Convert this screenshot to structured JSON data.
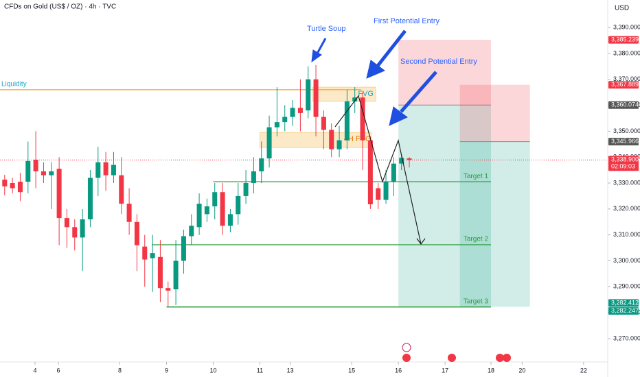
{
  "header": {
    "symbol": "CFDs on Gold (US$ / OZ) · 4h · TVC",
    "currency": "USD"
  },
  "chart_data": {
    "type": "candlestick",
    "x": [
      0,
      1,
      2,
      3,
      4,
      5,
      6,
      7,
      8,
      9,
      10,
      11,
      12,
      13,
      14,
      15,
      16,
      17,
      18,
      19,
      20,
      21,
      22,
      23,
      24,
      25,
      26,
      27,
      28,
      29,
      30,
      31,
      32,
      33,
      34,
      35,
      36,
      37,
      38,
      39,
      40,
      41,
      42,
      43,
      44,
      45,
      46,
      47,
      48,
      49,
      50,
      51,
      52
    ],
    "open": [
      3331.3,
      3330,
      3330.5,
      3330.5,
      3339,
      3334.5,
      3333,
      3335.5,
      3316.5,
      3313,
      3309,
      3316,
      3332,
      3338,
      3333,
      3333,
      3322,
      3315,
      3305.5,
      3301,
      3301.5,
      3289.5,
      3289,
      3300,
      3309.5,
      3313,
      3318,
      3321,
      3326.5,
      3313.5,
      3318,
      3325,
      3330,
      3334.5,
      3339.5,
      3351.5,
      3353.5,
      3355.5,
      3359,
      3358,
      3370,
      3355.5,
      3350.5,
      3343,
      3346.5,
      3361.5,
      3363,
      3346.5,
      3328,
      3323.5,
      3330.5,
      3337.5,
      3339.5
    ],
    "high": [
      3333.2,
      3332,
      3334,
      3346,
      3350,
      3338,
      3338,
      3340,
      3320,
      3316,
      3320,
      3335,
      3344,
      3342,
      3342,
      3340,
      3328,
      3318,
      3310,
      3310,
      3308,
      3292,
      3308,
      3312,
      3318,
      3326,
      3324,
      3330,
      3330,
      3320,
      3330,
      3335,
      3340,
      3346,
      3356,
      3367,
      3360,
      3362,
      3370,
      3375,
      3375.5,
      3358,
      3353,
      3352,
      3366,
      3367,
      3365,
      3348,
      3330,
      3335,
      3340,
      3341,
      3340
    ],
    "low": [
      3325.2,
      3326,
      3323,
      3326,
      3328,
      3330,
      3320,
      3306,
      3305,
      3304,
      3296,
      3313,
      3325,
      3327,
      3330,
      3318,
      3310,
      3296,
      3290,
      3288,
      3284,
      3282.4,
      3283,
      3295,
      3306,
      3310,
      3315,
      3316,
      3310,
      3311,
      3314,
      3322,
      3326,
      3330,
      3336,
      3348,
      3350,
      3352,
      3350,
      3355,
      3348,
      3343,
      3340,
      3340,
      3343,
      3357,
      3335,
      3320,
      3320,
      3322,
      3325,
      3335,
      3336
    ],
    "close": [
      3328.7,
      3328,
      3326.5,
      3338.5,
      3334.5,
      3333,
      3334.5,
      3316.5,
      3313,
      3309,
      3316,
      3332,
      3338,
      3333,
      3337,
      3322,
      3315,
      3306,
      3300.5,
      3303,
      3289.5,
      3288.5,
      3300,
      3309.5,
      3313.5,
      3322,
      3321,
      3326.5,
      3313.5,
      3318,
      3325,
      3330,
      3334.5,
      3339.5,
      3351.5,
      3353.5,
      3355.5,
      3359,
      3357,
      3370,
      3355.5,
      3350.5,
      3343,
      3346.5,
      3361.5,
      3363,
      3346.5,
      3321.8,
      3323.5,
      3330.5,
      3337.5,
      3339.7,
      3338.9
    ],
    "up_color": "#089981",
    "down_color": "#f23645",
    "xlim": [
      -0.6,
      77.5
    ],
    "ylim": [
      3261,
      3400.6
    ],
    "xticks": [
      {
        "value": 3.9,
        "label": "4"
      },
      {
        "value": 6.9,
        "label": "6"
      },
      {
        "value": 14.8,
        "label": "8"
      },
      {
        "value": 20.8,
        "label": "9"
      },
      {
        "value": 26.8,
        "label": "10"
      },
      {
        "value": 32.8,
        "label": "11"
      },
      {
        "value": 36.7,
        "label": "13"
      },
      {
        "value": 44.6,
        "label": "15"
      },
      {
        "value": 50.6,
        "label": "16"
      },
      {
        "value": 56.6,
        "label": "17"
      },
      {
        "value": 62.5,
        "label": "18"
      },
      {
        "value": 66.5,
        "label": "20"
      },
      {
        "value": 74.4,
        "label": "22"
      }
    ],
    "yticks": [
      {
        "value": 3390,
        "label": "3,390.000"
      },
      {
        "value": 3380,
        "label": "3,380.000"
      },
      {
        "value": 3370,
        "label": "3,370.000"
      },
      {
        "value": 3360,
        "label": "3,360.000"
      },
      {
        "value": 3350,
        "label": "3,350.000"
      },
      {
        "value": 3340,
        "label": "3,340.000"
      },
      {
        "value": 3330,
        "label": "3,330.000"
      },
      {
        "value": 3320,
        "label": "3,320.000"
      },
      {
        "value": 3310,
        "label": "3,310.000"
      },
      {
        "value": 3300,
        "label": "3,300.000"
      },
      {
        "value": 3290,
        "label": "3,290.000"
      },
      {
        "value": 3280,
        "label": "3,280.000"
      },
      {
        "value": 3270,
        "label": "3,270.000"
      }
    ],
    "price_labels": [
      {
        "value": 3385.239,
        "label": "3,385.239",
        "color": "#f23645"
      },
      {
        "value": 3367.889,
        "label": "3,367.889",
        "color": "#f23645"
      },
      {
        "value": 3360.074,
        "label": "3,360.074",
        "color": "#555555"
      },
      {
        "value": 3345.966,
        "label": "3,345.966",
        "color": "#555555"
      },
      {
        "value": 3338.9,
        "label": "3,338.900",
        "color": "#f23645"
      },
      {
        "value": 3282.412,
        "label": "3,282.412",
        "color": "#089981"
      },
      {
        "value": 3282.247,
        "label": "3,282.247",
        "color": "#089981"
      }
    ],
    "countdown": "02:09:03",
    "levels": [
      {
        "name": "Liquidity",
        "value": 3366,
        "x": [
          -0.6,
          45.8
        ],
        "color": "#f7a21b"
      },
      {
        "name": "Target 1",
        "value": 3330.5,
        "x": [
          26.8,
          62.5
        ],
        "color": "#2a9d3a"
      },
      {
        "name": "Target 2",
        "value": 3306.2,
        "x": [
          18.9,
          62.5
        ],
        "color": "#2a9d3a"
      },
      {
        "name": "Target 3",
        "value": 3282.2,
        "x": [
          20.8,
          62.5
        ],
        "color": "#2a9d3a"
      }
    ],
    "zones": [
      {
        "name": "FVG",
        "top": 3367,
        "bottom": 3361.5,
        "x": [
          39.6,
          47.7
        ]
      },
      {
        "name": "4H FVG",
        "top": 3349.5,
        "bottom": 3343.7,
        "x": [
          32.8,
          47.1
        ]
      }
    ],
    "positions": [
      {
        "x": [
          50.6,
          62.5
        ],
        "stop": 3385.239,
        "entry": 3360.074,
        "target": 3282.412
      },
      {
        "x": [
          58.5,
          67.5
        ],
        "stop": 3367.889,
        "entry": 3345.966,
        "target": 3282.247
      }
    ],
    "annotations": [
      "Turtle Soup",
      "First Potential Entry",
      "Second Potential Entry"
    ]
  }
}
